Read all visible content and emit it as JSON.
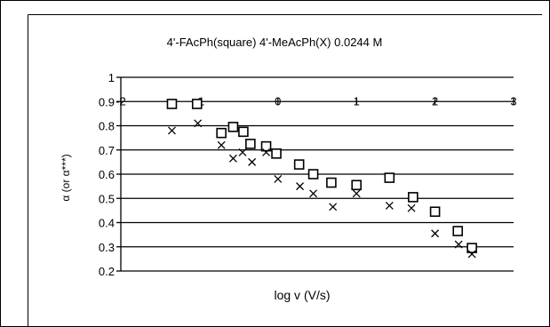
{
  "chart_data": {
    "type": "scatter",
    "title": "4'-FAcPh(square) 4'-MeAcPh(X) 0.0244 M",
    "xlabel": "log v (V/s)",
    "ylabel": "α (or α***)",
    "xlim": [
      -2,
      3
    ],
    "ylim": [
      0.2,
      1
    ],
    "y_ticks": [
      "0.2",
      "0.3",
      "0.4",
      "0.5",
      "0.6",
      "0.7",
      "0.8",
      "0.9",
      "1"
    ],
    "x_ticks": [
      "-2",
      "-1",
      "0",
      "1",
      "2",
      "3"
    ],
    "x_axis_at_y": 0.9,
    "grid": true,
    "legend": "none",
    "series": [
      {
        "marker": "square",
        "points": [
          {
            "x": -1.35,
            "y": 0.89
          },
          {
            "x": -1.03,
            "y": 0.89
          },
          {
            "x": -0.72,
            "y": 0.77
          },
          {
            "x": -0.57,
            "y": 0.795
          },
          {
            "x": -0.44,
            "y": 0.775
          },
          {
            "x": -0.35,
            "y": 0.725
          },
          {
            "x": -0.15,
            "y": 0.715
          },
          {
            "x": -0.02,
            "y": 0.685
          },
          {
            "x": 0.27,
            "y": 0.64
          },
          {
            "x": 0.45,
            "y": 0.6
          },
          {
            "x": 0.68,
            "y": 0.565
          },
          {
            "x": 1.0,
            "y": 0.555
          },
          {
            "x": 1.42,
            "y": 0.585
          },
          {
            "x": 1.72,
            "y": 0.505
          },
          {
            "x": 2.0,
            "y": 0.445
          },
          {
            "x": 2.29,
            "y": 0.365
          },
          {
            "x": 2.47,
            "y": 0.295
          }
        ]
      },
      {
        "marker": "x",
        "points": [
          {
            "x": -1.35,
            "y": 0.78
          },
          {
            "x": -1.02,
            "y": 0.81
          },
          {
            "x": -0.72,
            "y": 0.72
          },
          {
            "x": -0.57,
            "y": 0.665
          },
          {
            "x": -0.45,
            "y": 0.69
          },
          {
            "x": -0.33,
            "y": 0.65
          },
          {
            "x": -0.15,
            "y": 0.69
          },
          {
            "x": 0.0,
            "y": 0.58
          },
          {
            "x": 0.28,
            "y": 0.55
          },
          {
            "x": 0.45,
            "y": 0.52
          },
          {
            "x": 0.7,
            "y": 0.465
          },
          {
            "x": 1.0,
            "y": 0.52
          },
          {
            "x": 1.42,
            "y": 0.47
          },
          {
            "x": 1.7,
            "y": 0.46
          },
          {
            "x": 2.0,
            "y": 0.355
          },
          {
            "x": 2.3,
            "y": 0.31
          },
          {
            "x": 2.47,
            "y": 0.27
          }
        ]
      }
    ]
  }
}
